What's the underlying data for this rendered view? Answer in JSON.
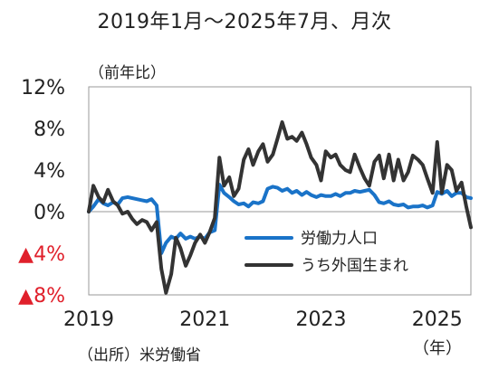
{
  "chart_data": {
    "type": "line",
    "title": "2019年1月～2025年7月、月次",
    "ylabel": "（前年比）",
    "source": "（出所）米労働省",
    "x_unit": "（年）",
    "ylim": [
      -8,
      12
    ],
    "xlim": [
      2019.0,
      2025.58
    ],
    "yticks": [
      {
        "value": 12,
        "label": "12%",
        "color": "#222222"
      },
      {
        "value": 8,
        "label": "8%",
        "color": "#222222"
      },
      {
        "value": 4,
        "label": "4%",
        "color": "#222222"
      },
      {
        "value": 0,
        "label": "0%",
        "color": "#222222"
      },
      {
        "value": -4,
        "label": "▲4%",
        "color": "#e0202b"
      },
      {
        "value": -8,
        "label": "▲8%",
        "color": "#e0202b"
      }
    ],
    "xticks": [
      {
        "value": 2019,
        "label": "2019"
      },
      {
        "value": 2021,
        "label": "2021"
      },
      {
        "value": 2023,
        "label": "2023"
      },
      {
        "value": 2025,
        "label": "2025"
      }
    ],
    "grid": false,
    "legend_position": "bottom-right",
    "series": [
      {
        "name": "労働力人口",
        "color": "#1a73c8",
        "points": [
          [
            2019.0,
            0.0
          ],
          [
            2019.08,
            0.5
          ],
          [
            2019.17,
            1.2
          ],
          [
            2019.25,
            0.8
          ],
          [
            2019.33,
            0.6
          ],
          [
            2019.42,
            0.9
          ],
          [
            2019.5,
            0.7
          ],
          [
            2019.58,
            1.3
          ],
          [
            2019.67,
            1.4
          ],
          [
            2019.75,
            1.3
          ],
          [
            2019.83,
            1.2
          ],
          [
            2019.92,
            1.1
          ],
          [
            2020.0,
            1.0
          ],
          [
            2020.08,
            1.2
          ],
          [
            2020.17,
            0.6
          ],
          [
            2020.25,
            -4.0
          ],
          [
            2020.33,
            -3.0
          ],
          [
            2020.42,
            -2.4
          ],
          [
            2020.5,
            -2.6
          ],
          [
            2020.58,
            -2.1
          ],
          [
            2020.67,
            -2.6
          ],
          [
            2020.75,
            -2.4
          ],
          [
            2020.83,
            -2.6
          ],
          [
            2020.92,
            -2.4
          ],
          [
            2021.0,
            -2.6
          ],
          [
            2021.08,
            -2.0
          ],
          [
            2021.17,
            -1.8
          ],
          [
            2021.25,
            2.6
          ],
          [
            2021.33,
            1.8
          ],
          [
            2021.42,
            1.4
          ],
          [
            2021.5,
            1.0
          ],
          [
            2021.58,
            0.7
          ],
          [
            2021.67,
            0.8
          ],
          [
            2021.75,
            0.5
          ],
          [
            2021.83,
            0.9
          ],
          [
            2021.92,
            0.8
          ],
          [
            2022.0,
            1.0
          ],
          [
            2022.08,
            2.2
          ],
          [
            2022.17,
            2.4
          ],
          [
            2022.25,
            2.3
          ],
          [
            2022.33,
            2.0
          ],
          [
            2022.42,
            2.2
          ],
          [
            2022.5,
            1.8
          ],
          [
            2022.58,
            2.0
          ],
          [
            2022.67,
            1.6
          ],
          [
            2022.75,
            1.9
          ],
          [
            2022.83,
            1.6
          ],
          [
            2022.92,
            1.4
          ],
          [
            2023.0,
            1.6
          ],
          [
            2023.08,
            1.5
          ],
          [
            2023.17,
            1.5
          ],
          [
            2023.25,
            1.7
          ],
          [
            2023.33,
            1.5
          ],
          [
            2023.42,
            1.8
          ],
          [
            2023.5,
            1.8
          ],
          [
            2023.58,
            2.0
          ],
          [
            2023.67,
            1.9
          ],
          [
            2023.75,
            2.0
          ],
          [
            2023.83,
            2.1
          ],
          [
            2023.92,
            1.6
          ],
          [
            2024.0,
            0.9
          ],
          [
            2024.08,
            0.8
          ],
          [
            2024.17,
            1.0
          ],
          [
            2024.25,
            0.7
          ],
          [
            2024.33,
            0.6
          ],
          [
            2024.42,
            0.7
          ],
          [
            2024.5,
            0.4
          ],
          [
            2024.58,
            0.5
          ],
          [
            2024.67,
            0.5
          ],
          [
            2024.75,
            0.6
          ],
          [
            2024.83,
            0.4
          ],
          [
            2024.92,
            0.6
          ],
          [
            2025.0,
            1.9
          ],
          [
            2025.08,
            1.7
          ],
          [
            2025.17,
            2.0
          ],
          [
            2025.25,
            1.5
          ],
          [
            2025.33,
            1.8
          ],
          [
            2025.42,
            1.8
          ],
          [
            2025.5,
            1.4
          ],
          [
            2025.58,
            1.3
          ]
        ]
      },
      {
        "name": "うち外国生まれ",
        "color": "#333333",
        "points": [
          [
            2019.0,
            0.0
          ],
          [
            2019.08,
            2.5
          ],
          [
            2019.17,
            1.4
          ],
          [
            2019.25,
            0.9
          ],
          [
            2019.33,
            2.1
          ],
          [
            2019.42,
            1.0
          ],
          [
            2019.5,
            0.6
          ],
          [
            2019.58,
            -0.2
          ],
          [
            2019.67,
            0.0
          ],
          [
            2019.75,
            -0.7
          ],
          [
            2019.83,
            -1.2
          ],
          [
            2019.92,
            -0.8
          ],
          [
            2020.0,
            -1.0
          ],
          [
            2020.08,
            -1.8
          ],
          [
            2020.17,
            -1.0
          ],
          [
            2020.25,
            -5.5
          ],
          [
            2020.33,
            -7.8
          ],
          [
            2020.42,
            -6.0
          ],
          [
            2020.5,
            -2.5
          ],
          [
            2020.58,
            -3.5
          ],
          [
            2020.67,
            -5.2
          ],
          [
            2020.75,
            -4.2
          ],
          [
            2020.83,
            -3.0
          ],
          [
            2020.92,
            -2.2
          ],
          [
            2021.0,
            -3.0
          ],
          [
            2021.08,
            -2.0
          ],
          [
            2021.17,
            -0.6
          ],
          [
            2021.25,
            5.2
          ],
          [
            2021.33,
            2.5
          ],
          [
            2021.42,
            3.3
          ],
          [
            2021.5,
            1.5
          ],
          [
            2021.58,
            2.2
          ],
          [
            2021.67,
            5.0
          ],
          [
            2021.75,
            6.0
          ],
          [
            2021.83,
            4.5
          ],
          [
            2021.92,
            5.8
          ],
          [
            2022.0,
            6.5
          ],
          [
            2022.08,
            4.8
          ],
          [
            2022.17,
            5.5
          ],
          [
            2022.25,
            7.0
          ],
          [
            2022.33,
            8.6
          ],
          [
            2022.42,
            7.0
          ],
          [
            2022.5,
            7.2
          ],
          [
            2022.58,
            6.8
          ],
          [
            2022.67,
            7.6
          ],
          [
            2022.75,
            6.5
          ],
          [
            2022.83,
            5.2
          ],
          [
            2022.92,
            4.5
          ],
          [
            2023.0,
            3.0
          ],
          [
            2023.08,
            5.8
          ],
          [
            2023.17,
            5.2
          ],
          [
            2023.25,
            5.5
          ],
          [
            2023.33,
            4.5
          ],
          [
            2023.42,
            4.0
          ],
          [
            2023.5,
            3.8
          ],
          [
            2023.58,
            5.5
          ],
          [
            2023.67,
            4.2
          ],
          [
            2023.75,
            3.2
          ],
          [
            2023.83,
            2.5
          ],
          [
            2023.92,
            4.8
          ],
          [
            2024.0,
            5.4
          ],
          [
            2024.08,
            3.2
          ],
          [
            2024.17,
            5.5
          ],
          [
            2024.25,
            3.0
          ],
          [
            2024.33,
            5.0
          ],
          [
            2024.42,
            3.0
          ],
          [
            2024.5,
            3.8
          ],
          [
            2024.58,
            5.4
          ],
          [
            2024.67,
            5.0
          ],
          [
            2024.75,
            4.5
          ],
          [
            2024.83,
            3.2
          ],
          [
            2024.92,
            1.8
          ],
          [
            2025.0,
            6.7
          ],
          [
            2025.08,
            1.8
          ],
          [
            2025.17,
            4.5
          ],
          [
            2025.25,
            4.0
          ],
          [
            2025.33,
            2.0
          ],
          [
            2025.42,
            2.8
          ],
          [
            2025.5,
            0.5
          ],
          [
            2025.58,
            -1.5
          ]
        ]
      }
    ]
  }
}
